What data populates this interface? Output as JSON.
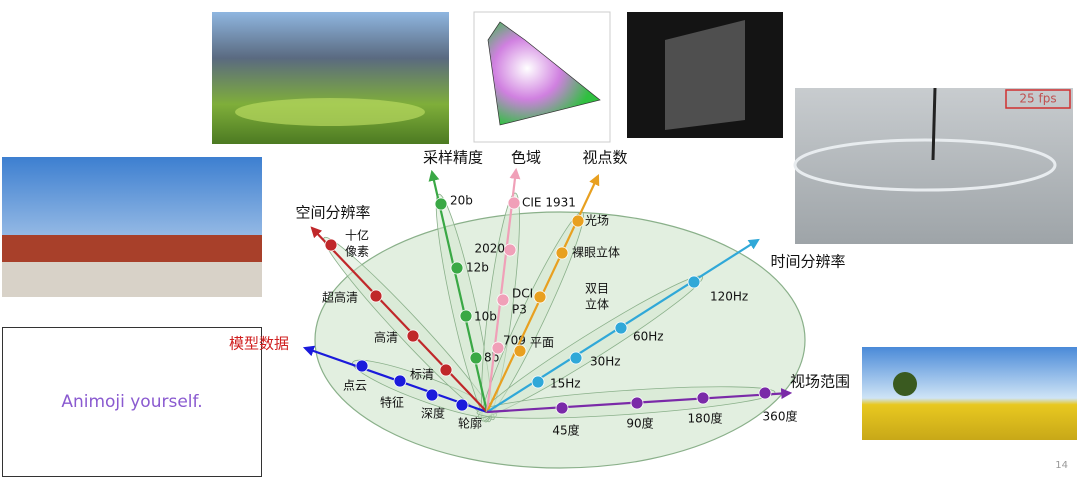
{
  "axes": [
    {
      "title": "模型数据",
      "levels": [
        "点云",
        "特征",
        "深度",
        "轮廓"
      ]
    },
    {
      "title": "空间分辨率",
      "levels": [
        [
          "十亿",
          "像素"
        ],
        "超高清",
        "高清",
        "标清"
      ]
    },
    {
      "title": "采样精度",
      "levels": [
        "20b",
        "12b",
        "10b",
        "8b"
      ]
    },
    {
      "title": "色域",
      "levels": [
        "CIE 1931",
        "2020",
        [
          "DCI",
          "P3"
        ],
        "709"
      ]
    },
    {
      "title": "视点数",
      "levels": [
        "光场",
        "裸眼立体",
        [
          "双目",
          "立体"
        ],
        "平面"
      ]
    },
    {
      "title": "时间分辨率",
      "levels": [
        "120Hz",
        "60Hz",
        "30Hz",
        "15Hz"
      ]
    },
    {
      "title": "视场范围",
      "levels": [
        "360度",
        "180度",
        "90度",
        "45度"
      ]
    }
  ],
  "images": {
    "animoji_text": "Animoji yourself.",
    "fps_label": "25 fps"
  },
  "page_number": "14"
}
